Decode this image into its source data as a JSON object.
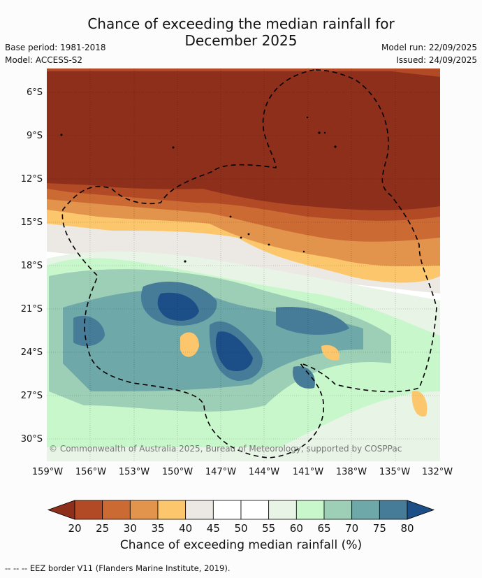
{
  "header": {
    "title_line1": "Chance of exceeding the median rainfall for",
    "title_line2": "December 2025",
    "base_period": "Base period: 1981-2018",
    "model": "Model: ACCESS-S2",
    "model_run": "Model run: 22/09/2025",
    "issued": "Issued: 24/09/2025"
  },
  "map": {
    "copyright": "© Commonwealth of Australia 2025, Bureau of Meteorology, supported by COSPPac",
    "lat_labels": [
      "6°S",
      "9°S",
      "12°S",
      "15°S",
      "18°S",
      "21°S",
      "24°S",
      "27°S",
      "30°S"
    ],
    "lon_labels": [
      "159°W",
      "156°W",
      "153°W",
      "150°W",
      "147°W",
      "144°W",
      "141°W",
      "138°W",
      "135°W",
      "132°W"
    ]
  },
  "colorbar": {
    "ticks": [
      "20",
      "25",
      "30",
      "35",
      "40",
      "45",
      "50",
      "55",
      "60",
      "65",
      "70",
      "75",
      "80"
    ],
    "colors": [
      "#8e2f1c",
      "#b24a26",
      "#cc6a34",
      "#e2944c",
      "#fcc76c",
      "#ece9e4",
      "#ffffff",
      "#ffffff",
      "#e8f4e6",
      "#c9f7cc",
      "#9ccfb6",
      "#6ea8a8",
      "#467c98",
      "#1c4f88"
    ],
    "label": "Chance of exceeding median rainfall (%)"
  },
  "legend": {
    "eez_text": "--  --  -- EEZ border V11 (Flanders Marine Institute, 2019)."
  }
}
